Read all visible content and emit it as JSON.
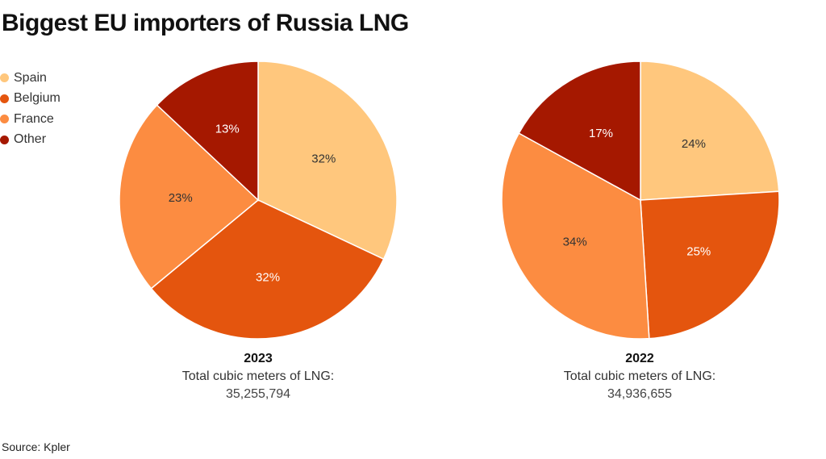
{
  "title": "Biggest EU importers of Russia LNG",
  "source": "Source: Kpler",
  "colors": {
    "Spain": "#ffc77d",
    "Belgium": "#e4550e",
    "France": "#fc8c41",
    "Other": "#a51800"
  },
  "legend": [
    {
      "label": "Spain",
      "color": "#ffc77d"
    },
    {
      "label": "Belgium",
      "color": "#e4550e"
    },
    {
      "label": "France",
      "color": "#fc8c41"
    },
    {
      "label": "Other",
      "color": "#a51800"
    }
  ],
  "chart_data": [
    {
      "type": "pie",
      "title": "2023",
      "total_label": "Total cubic meters of LNG:",
      "total_value": "35,255,794",
      "slices": [
        {
          "name": "Spain",
          "value": 32,
          "label": "32%"
        },
        {
          "name": "Belgium",
          "value": 32,
          "label": "32%"
        },
        {
          "name": "France",
          "value": 23,
          "label": "23%"
        },
        {
          "name": "Other",
          "value": 13,
          "label": "13%"
        }
      ]
    },
    {
      "type": "pie",
      "title": "2022",
      "total_label": "Total cubic meters of LNG:",
      "total_value": "34,936,655",
      "slices": [
        {
          "name": "Spain",
          "value": 24,
          "label": "24%"
        },
        {
          "name": "Belgium",
          "value": 25,
          "label": "25%"
        },
        {
          "name": "France",
          "value": 34,
          "label": "34%"
        },
        {
          "name": "Other",
          "value": 17,
          "label": "17%"
        }
      ]
    }
  ]
}
